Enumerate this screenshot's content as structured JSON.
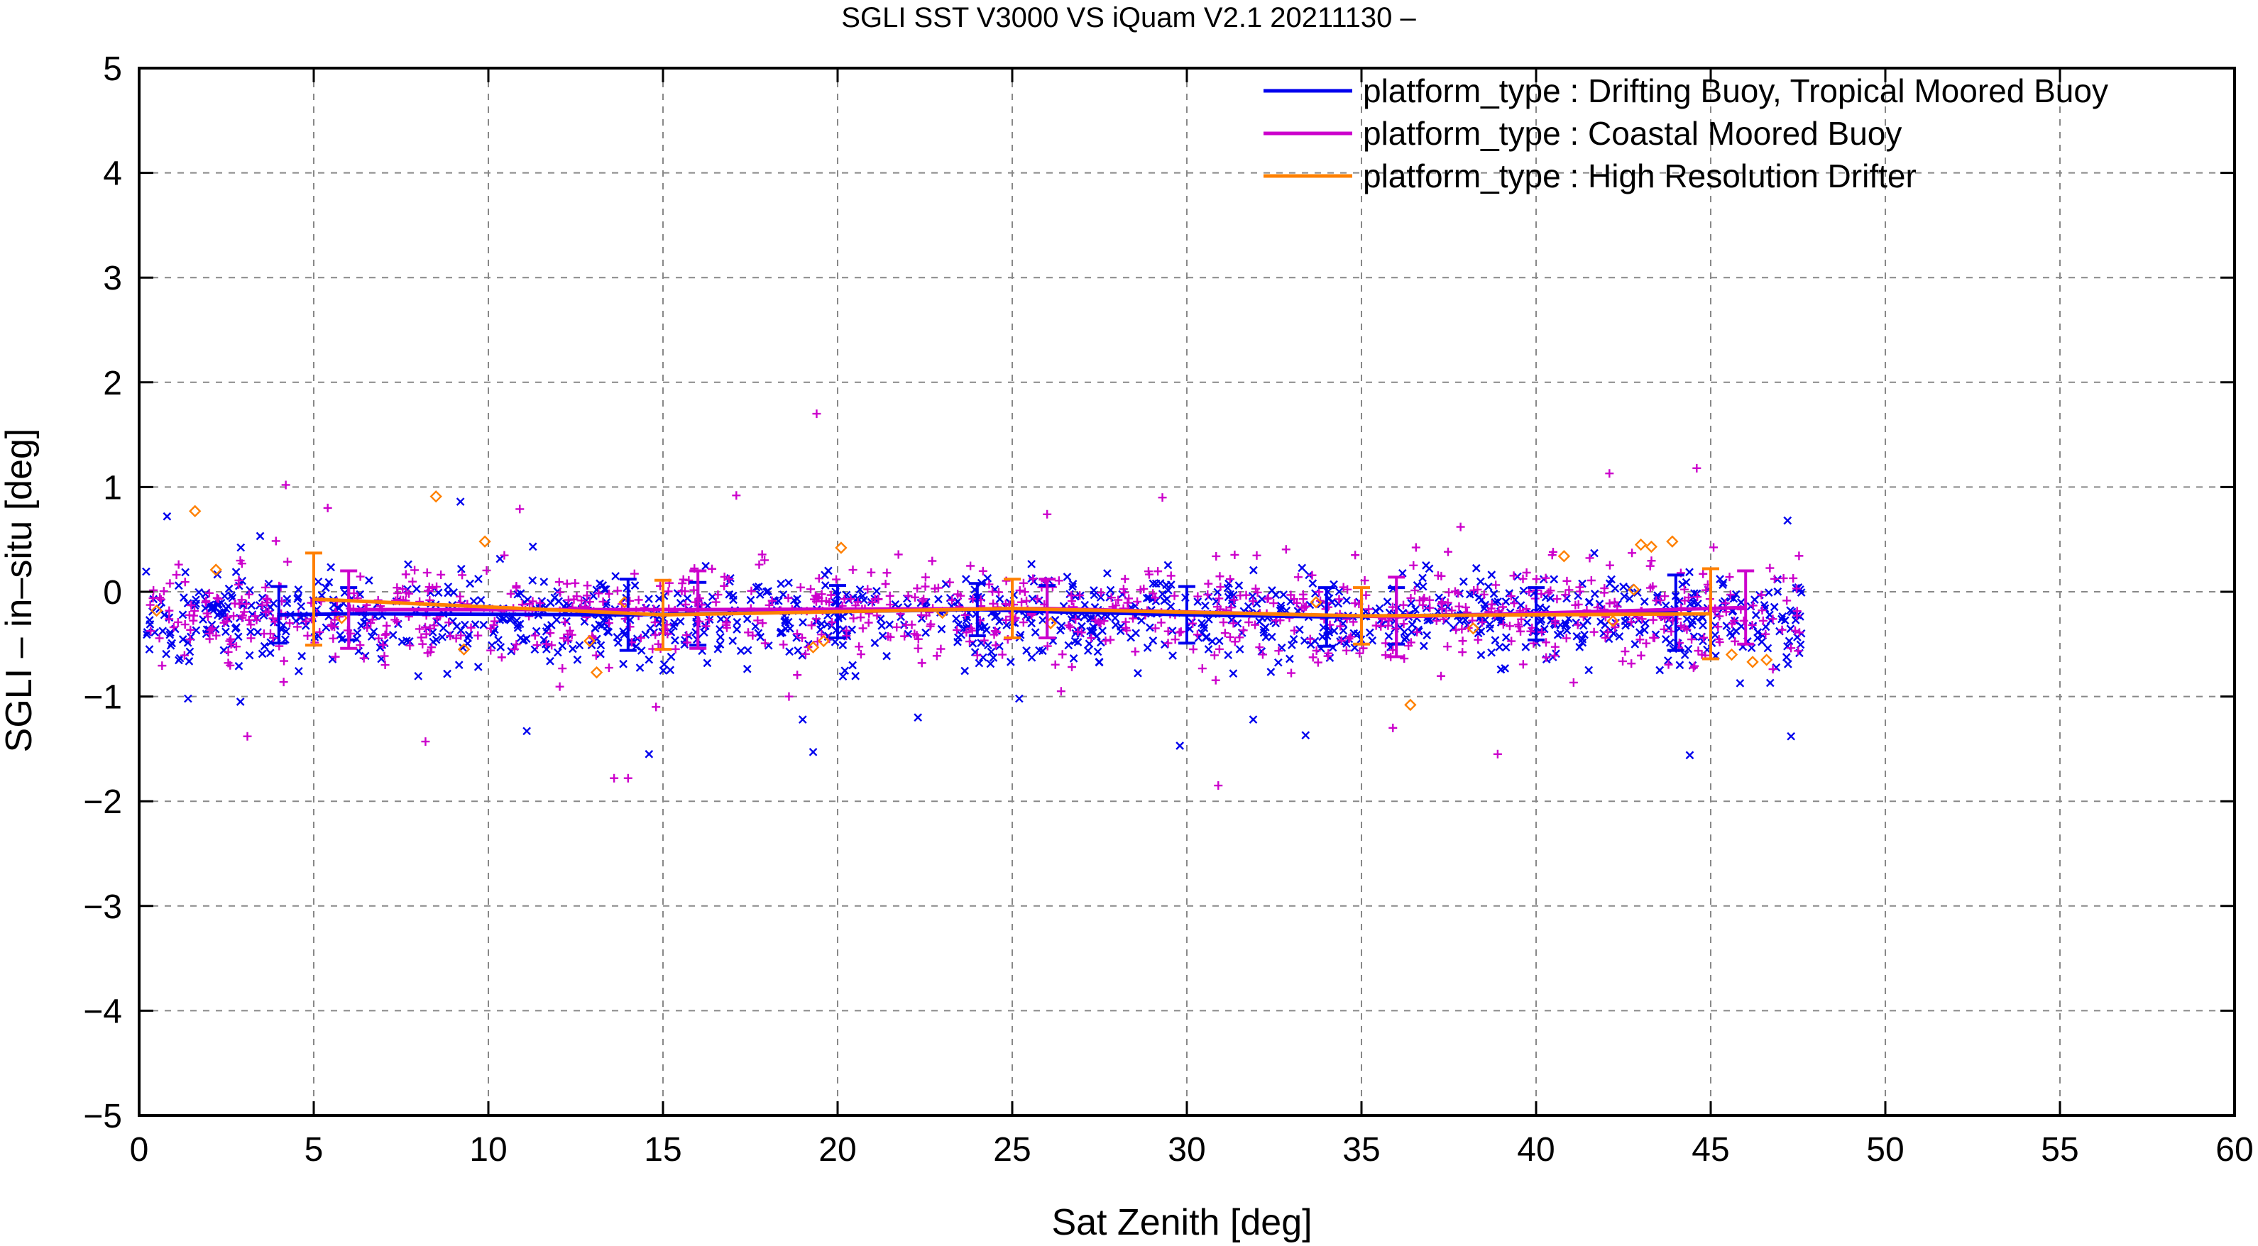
{
  "chart_data": {
    "type": "scatter",
    "title": "SGLI SST V3000 VS iQuam V2.1 20211130 –",
    "xlabel": "Sat Zenith [deg]",
    "ylabel": "SGLI – in–situ [deg]",
    "xlim": [
      0,
      60
    ],
    "ylim": [
      -5,
      5
    ],
    "xticks": [
      0,
      5,
      10,
      15,
      20,
      25,
      30,
      35,
      40,
      45,
      50,
      55,
      60
    ],
    "yticks": [
      -5,
      -4,
      -3,
      -2,
      -1,
      0,
      1,
      2,
      3,
      4,
      5
    ],
    "xtick_labels": [
      "0",
      "5",
      "10",
      "15",
      "20",
      "25",
      "30",
      "35",
      "40",
      "45",
      "50",
      "55",
      "60"
    ],
    "ytick_labels": [
      "−5",
      "−4",
      "−3",
      "−2",
      "−1",
      "0",
      "1",
      "2",
      "3",
      "4",
      "5"
    ],
    "grid": true,
    "legend_position": "top-right",
    "series": [
      {
        "name": "platform_type : Drifting Buoy, Tropical Moored Buoy",
        "color": "#0000ee",
        "marker": "x",
        "point_count": 1100,
        "scatter_seed": 11,
        "scatter_x_range": [
          0.2,
          47.6
        ],
        "scatter_center": -0.25,
        "scatter_spread": 0.22,
        "outliers": [
          {
            "x": 0.8,
            "y": 0.72
          },
          {
            "x": 1.4,
            "y": -1.02
          },
          {
            "x": 2.9,
            "y": -1.05
          },
          {
            "x": 9.2,
            "y": 0.86
          },
          {
            "x": 11.1,
            "y": -1.33
          },
          {
            "x": 14.6,
            "y": -1.55
          },
          {
            "x": 19.0,
            "y": -1.22
          },
          {
            "x": 19.3,
            "y": -1.53
          },
          {
            "x": 22.3,
            "y": -1.2
          },
          {
            "x": 25.2,
            "y": -1.02
          },
          {
            "x": 29.8,
            "y": -1.47
          },
          {
            "x": 31.9,
            "y": -1.22
          },
          {
            "x": 33.4,
            "y": -1.37
          },
          {
            "x": 44.4,
            "y": -1.56
          },
          {
            "x": 47.3,
            "y": -1.38
          },
          {
            "x": 47.2,
            "y": 0.68
          }
        ],
        "mean_line": {
          "x": [
            4,
            6,
            14,
            16,
            20,
            24,
            26,
            30,
            34,
            36,
            40,
            44
          ],
          "y": [
            -0.22,
            -0.21,
            -0.22,
            -0.21,
            -0.19,
            -0.17,
            -0.19,
            -0.22,
            -0.24,
            -0.23,
            -0.21,
            -0.2
          ],
          "err": [
            0.27,
            0.25,
            0.34,
            0.3,
            0.25,
            0.25,
            0.25,
            0.27,
            0.28,
            0.27,
            0.25,
            0.36
          ]
        }
      },
      {
        "name": "platform_type : Coastal Moored Buoy",
        "color": "#cc00cc",
        "marker": "+",
        "point_count": 850,
        "scatter_seed": 23,
        "scatter_x_range": [
          0.2,
          47.6
        ],
        "scatter_center": -0.2,
        "scatter_spread": 0.24,
        "outliers": [
          {
            "x": 4.2,
            "y": 1.02
          },
          {
            "x": 3.1,
            "y": -1.38
          },
          {
            "x": 8.2,
            "y": -1.43
          },
          {
            "x": 13.6,
            "y": -1.78
          },
          {
            "x": 14.0,
            "y": -1.78
          },
          {
            "x": 14.8,
            "y": -1.1
          },
          {
            "x": 19.4,
            "y": 1.7
          },
          {
            "x": 17.1,
            "y": 0.92
          },
          {
            "x": 26.0,
            "y": 0.74
          },
          {
            "x": 29.3,
            "y": 0.9
          },
          {
            "x": 30.9,
            "y": -1.85
          },
          {
            "x": 35.9,
            "y": -1.3
          },
          {
            "x": 38.9,
            "y": -1.55
          },
          {
            "x": 42.1,
            "y": 1.13
          },
          {
            "x": 44.6,
            "y": 1.18
          },
          {
            "x": 5.4,
            "y": 0.8
          },
          {
            "x": 10.9,
            "y": 0.79
          },
          {
            "x": 26.4,
            "y": -0.95
          }
        ],
        "mean_line": {
          "x": [
            6,
            16,
            26,
            36,
            46
          ],
          "y": [
            -0.17,
            -0.17,
            -0.16,
            -0.24,
            -0.15
          ],
          "err": [
            0.37,
            0.37,
            0.28,
            0.38,
            0.35
          ]
        }
      },
      {
        "name": "platform_type : High Resolution Drifter",
        "color": "#ff8000",
        "marker": "diamond",
        "points": [
          {
            "x": 0.5,
            "y": -0.18
          },
          {
            "x": 1.6,
            "y": 0.77
          },
          {
            "x": 2.2,
            "y": 0.21
          },
          {
            "x": 8.5,
            "y": 0.91
          },
          {
            "x": 9.3,
            "y": -0.55
          },
          {
            "x": 9.9,
            "y": 0.48
          },
          {
            "x": 12.9,
            "y": -0.47
          },
          {
            "x": 13.1,
            "y": -0.77
          },
          {
            "x": 13.9,
            "y": -0.1
          },
          {
            "x": 19.3,
            "y": -0.53
          },
          {
            "x": 19.6,
            "y": -0.47
          },
          {
            "x": 20.1,
            "y": 0.42
          },
          {
            "x": 36.4,
            "y": -1.08
          },
          {
            "x": 40.8,
            "y": 0.34
          },
          {
            "x": 42.2,
            "y": -0.28
          },
          {
            "x": 43.0,
            "y": 0.45
          },
          {
            "x": 43.3,
            "y": 0.43
          },
          {
            "x": 43.9,
            "y": 0.48
          },
          {
            "x": 45.6,
            "y": -0.6
          },
          {
            "x": 46.2,
            "y": -0.67
          },
          {
            "x": 46.6,
            "y": -0.65
          },
          {
            "x": 5.8,
            "y": -0.25
          },
          {
            "x": 23.0,
            "y": -0.2
          },
          {
            "x": 26.1,
            "y": -0.3
          },
          {
            "x": 33.7,
            "y": -0.1
          },
          {
            "x": 38.2,
            "y": -0.35
          },
          {
            "x": 42.8,
            "y": 0.02
          }
        ],
        "mean_line": {
          "x": [
            5,
            15,
            25,
            35,
            45
          ],
          "y": [
            -0.07,
            -0.22,
            -0.16,
            -0.23,
            -0.21
          ],
          "err": [
            0.44,
            0.33,
            0.28,
            0.27,
            0.43
          ]
        }
      }
    ]
  }
}
